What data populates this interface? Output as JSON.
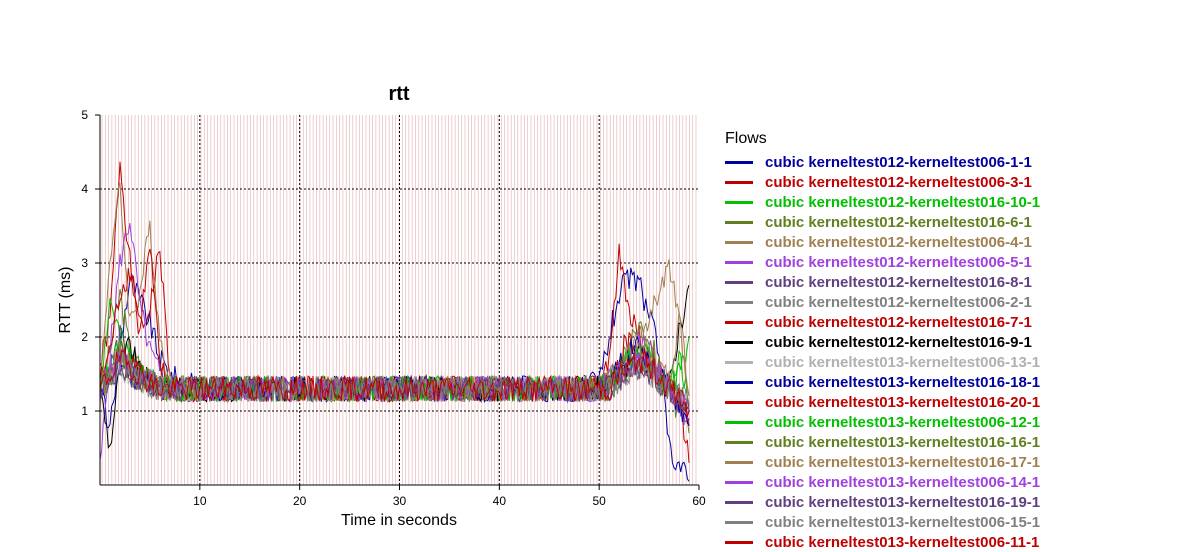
{
  "chart_data": {
    "type": "line",
    "title": "rtt",
    "xlabel": "Time in seconds",
    "ylabel": "RTT (ms)",
    "xlim": [
      0,
      60
    ],
    "ylim": [
      0,
      5
    ],
    "x_ticks": [
      10,
      20,
      30,
      40,
      50,
      60
    ],
    "y_ticks": [
      1,
      2,
      3,
      4,
      5
    ],
    "grid": true,
    "legend_title": "Flows",
    "legend_position": "right",
    "series": [
      {
        "name": "cubic kerneltest012-kerneltest006-1-1",
        "color": "#0000a0",
        "x": [
          0,
          1,
          2,
          3,
          4,
          5,
          6,
          7,
          8,
          10,
          15,
          20,
          25,
          30,
          35,
          40,
          45,
          48,
          50,
          51,
          52,
          53,
          54,
          55,
          56,
          57,
          58,
          59
        ],
        "values": [
          1.4,
          0.7,
          1.9,
          2.8,
          2.5,
          2.2,
          1.7,
          1.5,
          1.4,
          1.3,
          1.3,
          1.3,
          1.3,
          1.3,
          1.3,
          1.3,
          1.3,
          1.3,
          1.4,
          2.0,
          2.6,
          2.8,
          2.7,
          2.3,
          1.8,
          0.5,
          0.3,
          0.05
        ]
      },
      {
        "name": "cubic kerneltest012-kerneltest006-3-1",
        "color": "#c00000",
        "x": [
          0,
          1,
          2,
          3,
          4,
          5,
          6,
          7,
          8,
          10,
          15,
          20,
          25,
          30,
          35,
          40,
          45,
          48,
          50,
          51,
          52,
          53,
          54,
          55,
          56,
          57,
          58,
          59
        ],
        "values": [
          1.6,
          2.2,
          4.4,
          3.0,
          2.0,
          2.4,
          3.2,
          1.4,
          1.3,
          1.3,
          1.3,
          1.3,
          1.3,
          1.3,
          1.3,
          1.3,
          1.3,
          1.3,
          1.3,
          1.6,
          3.1,
          2.4,
          2.0,
          1.8,
          1.6,
          1.3,
          1.2,
          0.3
        ]
      },
      {
        "name": "cubic kerneltest012-kerneltest016-10-1",
        "color": "#00c000",
        "x": [
          0,
          1,
          2,
          3,
          4,
          5,
          6,
          7,
          8,
          10,
          15,
          20,
          25,
          30,
          35,
          40,
          45,
          48,
          50,
          51,
          52,
          53,
          54,
          55,
          56,
          57,
          58,
          59
        ],
        "values": [
          1.3,
          2.5,
          2.0,
          1.7,
          1.5,
          1.4,
          1.4,
          1.3,
          1.3,
          1.3,
          1.3,
          1.3,
          1.3,
          1.3,
          1.3,
          1.3,
          1.3,
          1.3,
          1.3,
          1.4,
          1.5,
          1.6,
          1.8,
          1.6,
          1.4,
          1.3,
          1.5,
          2.0
        ]
      },
      {
        "name": "cubic kerneltest012-kerneltest016-6-1",
        "color": "#608020",
        "x": [
          0,
          1,
          2,
          3,
          4,
          5,
          6,
          7,
          8,
          10,
          15,
          20,
          25,
          30,
          35,
          40,
          45,
          48,
          50,
          51,
          52,
          53,
          54,
          55,
          56,
          57,
          58,
          59
        ],
        "values": [
          1.3,
          1.8,
          2.6,
          1.8,
          1.6,
          1.4,
          1.4,
          1.3,
          1.3,
          1.3,
          1.3,
          1.3,
          1.3,
          1.3,
          1.3,
          1.3,
          1.3,
          1.3,
          1.3,
          1.3,
          1.5,
          1.8,
          2.2,
          2.0,
          1.6,
          1.2,
          1.0,
          0.7
        ]
      },
      {
        "name": "cubic kerneltest012-kerneltest006-4-1",
        "color": "#a08050",
        "x": [
          0,
          1,
          2,
          3,
          4,
          5,
          6,
          7,
          8,
          10,
          15,
          20,
          25,
          30,
          35,
          40,
          45,
          48,
          50,
          51,
          52,
          53,
          54,
          55,
          56,
          57,
          58,
          59
        ],
        "values": [
          1.2,
          3.1,
          4.0,
          2.2,
          2.6,
          3.5,
          2.0,
          1.4,
          1.3,
          1.3,
          1.3,
          1.3,
          1.3,
          1.3,
          1.3,
          1.3,
          1.3,
          1.3,
          1.3,
          1.4,
          1.6,
          1.8,
          2.0,
          2.2,
          2.6,
          2.9,
          2.4,
          1.2
        ]
      },
      {
        "name": "cubic kerneltest012-kerneltest006-5-1",
        "color": "#a040e0",
        "x": [
          0,
          1,
          2,
          3,
          4,
          5,
          6,
          7,
          8,
          10,
          15,
          20,
          25,
          30,
          35,
          40,
          45,
          48,
          50,
          51,
          52,
          53,
          54,
          55,
          56,
          57,
          58,
          59
        ],
        "values": [
          0.2,
          1.8,
          3.0,
          3.6,
          2.4,
          1.8,
          1.5,
          1.3,
          1.3,
          1.3,
          1.3,
          1.3,
          1.3,
          1.3,
          1.3,
          1.3,
          1.3,
          1.3,
          1.3,
          1.4,
          1.5,
          1.7,
          1.9,
          1.8,
          1.5,
          1.3,
          1.1,
          0.8
        ]
      },
      {
        "name": "cubic kerneltest012-kerneltest016-8-1",
        "color": "#604080",
        "x": [
          0,
          1,
          2,
          3,
          4,
          5,
          6,
          7,
          8,
          10,
          15,
          20,
          25,
          30,
          35,
          40,
          45,
          48,
          50,
          51,
          52,
          53,
          54,
          55,
          56,
          57,
          58,
          59
        ],
        "values": [
          1.3,
          1.6,
          2.0,
          1.7,
          1.5,
          1.4,
          1.4,
          1.3,
          1.3,
          1.3,
          1.3,
          1.3,
          1.3,
          1.3,
          1.3,
          1.3,
          1.3,
          1.3,
          1.3,
          1.4,
          1.6,
          1.7,
          1.8,
          1.7,
          1.5,
          1.3,
          1.2,
          1.0
        ]
      },
      {
        "name": "cubic kerneltest012-kerneltest006-2-1",
        "color": "#808080",
        "x": [
          0,
          1,
          2,
          3,
          4,
          5,
          6,
          7,
          8,
          10,
          15,
          20,
          25,
          30,
          35,
          40,
          45,
          48,
          50,
          51,
          52,
          53,
          54,
          55,
          56,
          57,
          58,
          59
        ],
        "values": [
          1.3,
          1.5,
          1.8,
          1.6,
          1.5,
          1.4,
          1.3,
          1.3,
          1.3,
          1.3,
          1.3,
          1.3,
          1.3,
          1.3,
          1.3,
          1.3,
          1.3,
          1.3,
          1.3,
          1.3,
          1.5,
          1.6,
          1.7,
          1.6,
          1.4,
          1.3,
          1.2,
          1.1
        ]
      },
      {
        "name": "cubic kerneltest012-kerneltest016-7-1",
        "color": "#c00000",
        "x": [
          0,
          1,
          2,
          3,
          4,
          5,
          6,
          7,
          8,
          10,
          15,
          20,
          25,
          30,
          35,
          40,
          45,
          48,
          50,
          51,
          52,
          53,
          54,
          55,
          56,
          57,
          58,
          59
        ],
        "values": [
          1.4,
          1.8,
          2.6,
          2.9,
          2.2,
          3.2,
          1.6,
          1.3,
          1.3,
          1.3,
          1.3,
          1.3,
          1.3,
          1.3,
          1.3,
          1.3,
          1.3,
          1.3,
          1.3,
          1.4,
          1.7,
          2.0,
          1.8,
          1.6,
          1.5,
          1.3,
          1.2,
          0.9
        ]
      },
      {
        "name": "cubic kerneltest012-kerneltest016-9-1",
        "color": "#000000",
        "x": [
          0,
          1,
          2,
          3,
          4,
          5,
          6,
          7,
          8,
          10,
          15,
          20,
          25,
          30,
          35,
          40,
          45,
          48,
          50,
          51,
          52,
          53,
          54,
          55,
          56,
          57,
          58,
          59
        ],
        "values": [
          1.3,
          0.5,
          1.6,
          1.9,
          1.5,
          1.4,
          1.3,
          1.3,
          1.3,
          1.3,
          1.3,
          1.3,
          1.3,
          1.3,
          1.3,
          1.3,
          1.3,
          1.3,
          1.3,
          1.3,
          1.5,
          1.6,
          1.7,
          1.6,
          1.5,
          1.3,
          2.1,
          2.7
        ]
      },
      {
        "name": "cubic kerneltest013-kerneltest006-13-1",
        "color": "#b0b0b0",
        "x": [
          0,
          1,
          2,
          3,
          4,
          5,
          6,
          7,
          8,
          10,
          15,
          20,
          25,
          30,
          35,
          40,
          45,
          48,
          50,
          51,
          52,
          53,
          54,
          55,
          56,
          57,
          58,
          59
        ],
        "values": [
          1.3,
          1.4,
          1.6,
          1.5,
          1.4,
          1.4,
          1.3,
          1.3,
          1.3,
          1.3,
          1.3,
          1.3,
          1.3,
          1.3,
          1.3,
          1.3,
          1.3,
          1.3,
          1.3,
          1.3,
          1.4,
          1.5,
          1.6,
          1.5,
          1.4,
          1.3,
          1.2,
          1.1
        ]
      },
      {
        "name": "cubic kerneltest013-kerneltest016-18-1",
        "color": "#0000a0",
        "x": [
          0,
          1,
          2,
          3,
          4,
          5,
          6,
          7,
          8,
          10,
          15,
          20,
          25,
          30,
          35,
          40,
          45,
          48,
          50,
          51,
          52,
          53,
          54,
          55,
          56,
          57,
          58,
          59
        ],
        "values": [
          1.3,
          1.5,
          1.7,
          1.5,
          1.4,
          1.4,
          1.3,
          1.3,
          1.3,
          1.3,
          1.3,
          1.3,
          1.3,
          1.3,
          1.3,
          1.3,
          1.3,
          1.3,
          1.3,
          1.4,
          1.6,
          1.8,
          1.9,
          1.7,
          1.5,
          1.3,
          1.1,
          0.8
        ]
      },
      {
        "name": "cubic kerneltest013-kerneltest016-20-1",
        "color": "#c00000",
        "x": [
          0,
          1,
          2,
          3,
          4,
          5,
          6,
          7,
          8,
          10,
          15,
          20,
          25,
          30,
          35,
          40,
          45,
          48,
          50,
          51,
          52,
          53,
          54,
          55,
          56,
          57,
          58,
          59
        ],
        "values": [
          1.3,
          1.5,
          1.8,
          1.6,
          1.5,
          1.4,
          1.3,
          1.3,
          1.3,
          1.3,
          1.3,
          1.3,
          1.3,
          1.3,
          1.3,
          1.3,
          1.3,
          1.3,
          1.3,
          1.3,
          1.5,
          1.6,
          1.7,
          1.6,
          1.5,
          1.3,
          1.2,
          1.0
        ]
      },
      {
        "name": "cubic kerneltest013-kerneltest006-12-1",
        "color": "#00c000",
        "x": [
          0,
          1,
          2,
          3,
          4,
          5,
          6,
          7,
          8,
          10,
          15,
          20,
          25,
          30,
          35,
          40,
          45,
          48,
          50,
          51,
          52,
          53,
          54,
          55,
          56,
          57,
          58,
          59
        ],
        "values": [
          1.3,
          1.6,
          1.9,
          1.7,
          1.5,
          1.4,
          1.3,
          1.3,
          1.3,
          1.3,
          1.3,
          1.3,
          1.3,
          1.3,
          1.3,
          1.3,
          1.3,
          1.3,
          1.3,
          1.4,
          1.5,
          1.7,
          1.8,
          1.7,
          1.5,
          1.3,
          1.8,
          1.1
        ]
      },
      {
        "name": "cubic kerneltest013-kerneltest016-16-1",
        "color": "#608020",
        "x": [
          0,
          1,
          2,
          3,
          4,
          5,
          6,
          7,
          8,
          10,
          15,
          20,
          25,
          30,
          35,
          40,
          45,
          48,
          50,
          51,
          52,
          53,
          54,
          55,
          56,
          57,
          58,
          59
        ],
        "values": [
          1.3,
          1.4,
          1.7,
          1.5,
          1.4,
          1.4,
          1.3,
          1.3,
          1.3,
          1.3,
          1.3,
          1.3,
          1.3,
          1.3,
          1.3,
          1.3,
          1.3,
          1.3,
          1.3,
          1.3,
          1.4,
          1.6,
          1.7,
          1.6,
          1.4,
          1.3,
          1.2,
          1.0
        ]
      },
      {
        "name": "cubic kerneltest013-kerneltest016-17-1",
        "color": "#a08050",
        "x": [
          0,
          1,
          2,
          3,
          4,
          5,
          6,
          7,
          8,
          10,
          15,
          20,
          25,
          30,
          35,
          40,
          45,
          48,
          50,
          51,
          52,
          53,
          54,
          55,
          56,
          57,
          58,
          59
        ],
        "values": [
          1.3,
          1.5,
          1.8,
          1.6,
          1.5,
          1.4,
          1.3,
          1.3,
          1.3,
          1.3,
          1.3,
          1.3,
          1.3,
          1.3,
          1.3,
          1.3,
          1.3,
          1.3,
          1.3,
          1.4,
          1.6,
          1.8,
          1.9,
          1.8,
          1.6,
          1.4,
          2.2,
          1.2
        ]
      },
      {
        "name": "cubic kerneltest013-kerneltest006-14-1",
        "color": "#a040e0",
        "x": [
          0,
          1,
          2,
          3,
          4,
          5,
          6,
          7,
          8,
          10,
          15,
          20,
          25,
          30,
          35,
          40,
          45,
          48,
          50,
          51,
          52,
          53,
          54,
          55,
          56,
          57,
          58,
          59
        ],
        "values": [
          1.3,
          1.5,
          1.7,
          1.6,
          1.4,
          1.4,
          1.3,
          1.3,
          1.3,
          1.3,
          1.3,
          1.3,
          1.3,
          1.3,
          1.3,
          1.3,
          1.3,
          1.3,
          1.3,
          1.3,
          1.5,
          1.6,
          1.7,
          1.6,
          1.5,
          1.3,
          1.2,
          1.0
        ]
      },
      {
        "name": "cubic kerneltest013-kerneltest016-19-1",
        "color": "#604080",
        "x": [
          0,
          1,
          2,
          3,
          4,
          5,
          6,
          7,
          8,
          10,
          15,
          20,
          25,
          30,
          35,
          40,
          45,
          48,
          50,
          51,
          52,
          53,
          54,
          55,
          56,
          57,
          58,
          59
        ],
        "values": [
          1.3,
          1.4,
          1.6,
          1.5,
          1.4,
          1.4,
          1.3,
          1.3,
          1.3,
          1.3,
          1.3,
          1.3,
          1.3,
          1.3,
          1.3,
          1.3,
          1.3,
          1.3,
          1.3,
          1.3,
          1.4,
          1.5,
          1.6,
          1.5,
          1.4,
          1.3,
          1.2,
          1.1
        ]
      },
      {
        "name": "cubic kerneltest013-kerneltest006-15-1",
        "color": "#808080",
        "x": [
          0,
          1,
          2,
          3,
          4,
          5,
          6,
          7,
          8,
          10,
          15,
          20,
          25,
          30,
          35,
          40,
          45,
          48,
          50,
          51,
          52,
          53,
          54,
          55,
          56,
          57,
          58,
          59
        ],
        "values": [
          1.3,
          1.4,
          1.6,
          1.5,
          1.4,
          1.3,
          1.3,
          1.3,
          1.3,
          1.3,
          1.3,
          1.3,
          1.3,
          1.3,
          1.3,
          1.3,
          1.3,
          1.3,
          1.3,
          1.3,
          1.4,
          1.5,
          1.6,
          1.5,
          1.4,
          1.3,
          1.2,
          1.1
        ]
      },
      {
        "name": "cubic kerneltest013-kerneltest006-11-1",
        "color": "#c00000",
        "x": [
          0,
          1,
          2,
          3,
          4,
          5,
          6,
          7,
          8,
          10,
          15,
          20,
          25,
          30,
          35,
          40,
          45,
          48,
          50,
          51,
          52,
          53,
          54,
          55,
          56,
          57,
          58,
          59
        ],
        "values": [
          1.3,
          1.5,
          1.7,
          1.6,
          1.5,
          1.4,
          1.3,
          1.3,
          1.3,
          1.3,
          1.3,
          1.3,
          1.3,
          1.3,
          1.3,
          1.3,
          1.3,
          1.3,
          1.3,
          1.3,
          1.5,
          1.6,
          1.7,
          1.6,
          1.5,
          1.3,
          1.2,
          1.0
        ]
      }
    ]
  }
}
